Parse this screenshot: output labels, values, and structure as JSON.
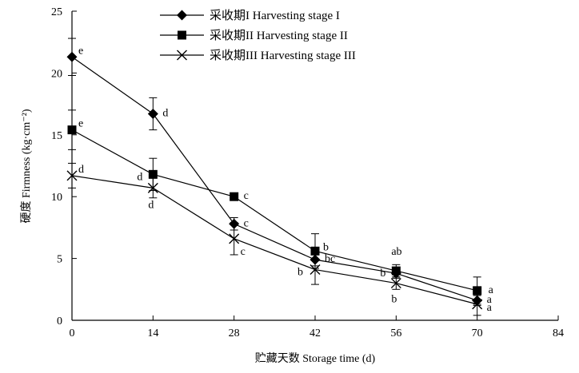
{
  "chart_data": {
    "type": "line",
    "xlabel": "贮藏天数 Storage time (d)",
    "ylabel": "硬度 Firmness (kg·cm⁻²)",
    "xlim": [
      0,
      84
    ],
    "ylim": [
      0,
      25
    ],
    "xticks": [
      "0",
      "14",
      "28",
      "42",
      "56",
      "70",
      "84"
    ],
    "yticks": [
      "0",
      "5",
      "10",
      "15",
      "20",
      "25"
    ],
    "grid": false,
    "legend_position": "top",
    "x": [
      0,
      14,
      28,
      42,
      56,
      70
    ],
    "series": [
      {
        "name": "采收期I Harvesting stage I",
        "marker": "diamond",
        "values": [
          21.3,
          16.7,
          7.8,
          4.9,
          3.8,
          1.6
        ],
        "errors": [
          1.5,
          1.3,
          0.5,
          0.5,
          0.4,
          0.4
        ],
        "labels": [
          "e",
          "d",
          "c",
          "bc",
          "ab",
          "a"
        ]
      },
      {
        "name": "采收期II Harvesting stage II",
        "marker": "square",
        "values": [
          15.4,
          11.8,
          10.0,
          5.6,
          4.0,
          2.4
        ],
        "errors": [
          1.6,
          1.3,
          0.2,
          1.4,
          0.5,
          1.1
        ],
        "labels": [
          "e",
          "d",
          "c",
          "b",
          "b",
          "a"
        ]
      },
      {
        "name": "采收期III Harvesting stage III",
        "marker": "x",
        "values": [
          11.7,
          10.7,
          6.6,
          4.1,
          3.0,
          1.3
        ],
        "errors": [
          1.0,
          0.8,
          1.3,
          1.2,
          0.5,
          0.9
        ],
        "labels": [
          "d",
          "d",
          "c",
          "b",
          "b",
          "a"
        ]
      }
    ]
  }
}
